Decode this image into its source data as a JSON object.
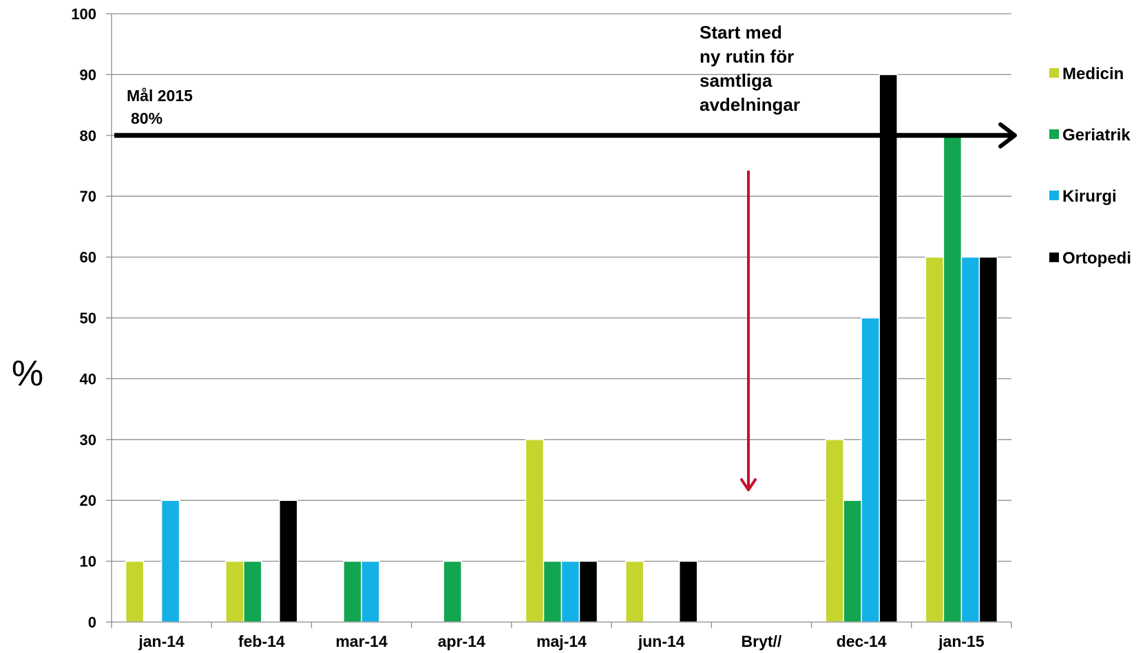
{
  "chart_data": {
    "type": "bar",
    "title": "",
    "xlabel": "",
    "ylabel": "%",
    "ylim": [
      0,
      100
    ],
    "yticks": [
      0,
      10,
      20,
      30,
      40,
      50,
      60,
      70,
      80,
      90,
      100
    ],
    "grid": true,
    "legend_position": "right",
    "categories": [
      "jan-14",
      "feb-14",
      "mar-14",
      "apr-14",
      "maj-14",
      "jun-14",
      "Bryt//",
      "dec-14",
      "jan-15"
    ],
    "series": [
      {
        "name": "Medicin",
        "color": "#c5d52e",
        "values": [
          10,
          10,
          0,
          0,
          30,
          10,
          0,
          30,
          60
        ]
      },
      {
        "name": "Geriatrik",
        "color": "#12a650",
        "values": [
          0,
          10,
          10,
          10,
          10,
          0,
          0,
          20,
          80
        ]
      },
      {
        "name": "Kirurgi",
        "color": "#14b1e7",
        "values": [
          20,
          0,
          10,
          0,
          10,
          0,
          0,
          50,
          60
        ]
      },
      {
        "name": "Ortopedi",
        "color": "#000000",
        "values": [
          0,
          20,
          0,
          0,
          10,
          10,
          0,
          90,
          60
        ]
      }
    ],
    "goal": {
      "value": 80,
      "label_line1": "Mål 2015",
      "label_line2": "80%"
    },
    "annotation": {
      "lines": [
        "Start med",
        "ny rutin för",
        "samtliga",
        "avdelningar"
      ],
      "arrow_color": "#c8102e"
    }
  }
}
